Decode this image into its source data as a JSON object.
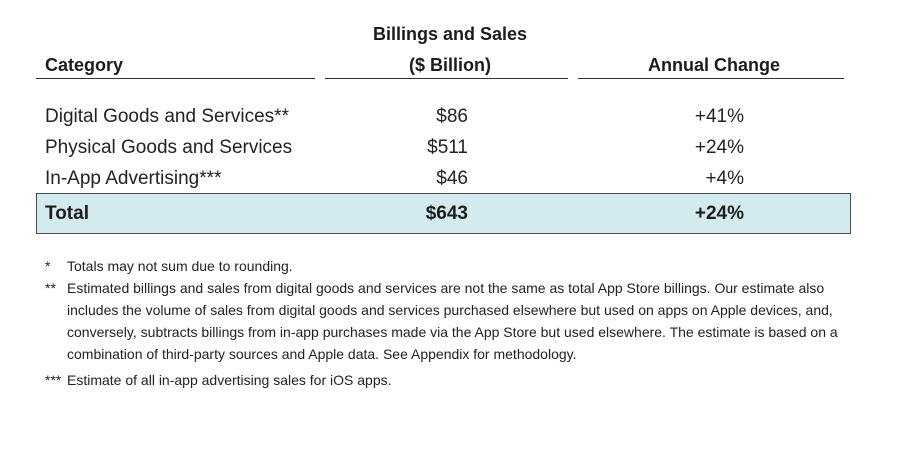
{
  "table": {
    "headers": {
      "category": "Category",
      "billings_line1": "Billings and Sales",
      "billings_line2": "($ Billion)",
      "annual_change": "Annual Change"
    },
    "rows": [
      {
        "category": "Digital Goods and Services**",
        "billings": "$86",
        "change": "+41%"
      },
      {
        "category": "Physical Goods and Services",
        "billings": "$511",
        "change": "+24%"
      },
      {
        "category": "In-App Advertising***",
        "billings": "$46",
        "change": "+4%"
      }
    ],
    "total": {
      "category": "Total",
      "billings": "$643",
      "change": "+24%"
    }
  },
  "footnotes": [
    {
      "mark": "*",
      "text": "Totals may not sum due to rounding."
    },
    {
      "mark": "**",
      "text": "Estimated billings and sales from digital goods and services are not the same as total App Store billings. Our estimate also includes the volume of sales from digital goods and services purchased elsewhere but used on apps on Apple devices, and, conversely, subtracts billings from in-app purchases made via the App Store but used elsewhere. The estimate is based on a combination of third-party sources and Apple data. See Appendix for methodology."
    },
    {
      "mark": "***",
      "text": "Estimate of all in-app advertising sales  for iOS apps."
    }
  ],
  "colors": {
    "total_row_fill": "#d3ebee",
    "text": "#1c1c1c"
  }
}
